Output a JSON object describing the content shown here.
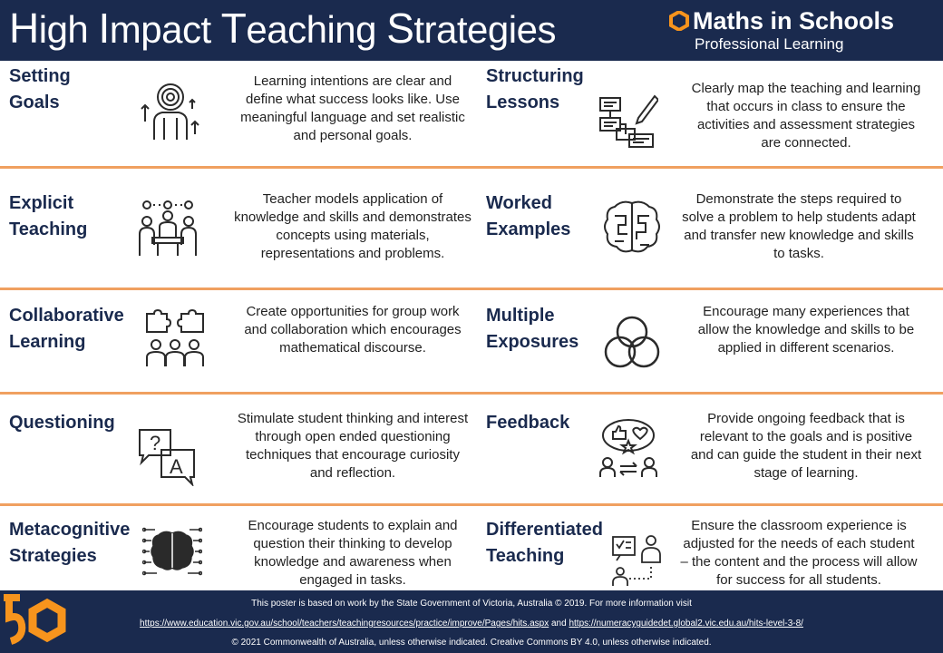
{
  "header": {
    "title_parts": [
      {
        "cap": "H",
        "rest": "igh "
      },
      {
        "cap": "I",
        "rest": "mpact "
      },
      {
        "cap": "T",
        "rest": "eaching "
      },
      {
        "cap": "S",
        "rest": "trategies"
      }
    ],
    "brand_name": "Maths in Schools",
    "brand_sub": "Professional Learning",
    "brand_logo_icon": "hexagon-logo-icon"
  },
  "colors": {
    "navy": "#1a2a4e",
    "orange": "#f0a060",
    "logo_orange": "#f7941d"
  },
  "strategies": [
    {
      "title_1": "Setting",
      "title_2": "Goals",
      "icon": "target-person-icon",
      "desc": "Learning intentions are clear and define what success looks like. Use meaningful language and set realistic and personal goals."
    },
    {
      "title_1": "Structuring",
      "title_2": "Lessons",
      "icon": "lesson-plan-icon",
      "desc": "Clearly map the teaching and learning that occurs in class to ensure the activities and assessment strategies are connected."
    },
    {
      "title_1": "Explicit",
      "title_2": "Teaching",
      "icon": "meeting-table-icon",
      "desc": "Teacher models application of knowledge and skills  and demonstrates concepts using materials, representations and problems."
    },
    {
      "title_1": "Worked",
      "title_2": "Examples",
      "icon": "brain-maze-icon",
      "desc": "Demonstrate the steps required to solve a problem to help students adapt and transfer new knowledge and skills to tasks."
    },
    {
      "title_1": "Collaborative",
      "title_2": "Learning",
      "icon": "puzzle-team-icon",
      "desc": "Create opportunities for group work and collaboration which encourages mathematical discourse."
    },
    {
      "title_1": "Multiple",
      "title_2": "Exposures",
      "icon": "venn-circles-icon",
      "desc": "Encourage many experiences that allow the knowledge and skills to be applied in different scenarios."
    },
    {
      "title_1": "Questioning",
      "title_2": "",
      "icon": "question-answer-icon",
      "desc": "Stimulate student thinking and interest through open ended questioning techniques that encourage curiosity and reflection."
    },
    {
      "title_1": "Feedback",
      "title_2": "",
      "icon": "feedback-people-icon",
      "desc": "Provide ongoing feedback that is relevant to the goals and is positive and can guide the student in their next stage of learning."
    },
    {
      "title_1": "Metacognitive",
      "title_2": "Strategies",
      "icon": "brain-circuit-icon",
      "desc": "Encourage students to explain and question their thinking to develop knowledge and awareness when engaged in tasks."
    },
    {
      "title_1": "Differentiated",
      "title_2": "Teaching",
      "icon": "teacher-students-icon",
      "desc": "Ensure the classroom experience is adjusted for the needs of each student – the content and the process will allow for success for all students."
    }
  ],
  "footer": {
    "line1": "This poster is based on work by the State Government of Victoria, Australia © 2019. For more information visit",
    "link1": "https://www.education.vic.gov.au/school/teachers/teachingresources/practice/improve/Pages/hits.aspx",
    "and": " and ",
    "link2": "https://numeracyguidedet.global2.vic.edu.au/hits-level-3-8/",
    "line3": "© 2021 Commonwealth of Australia, unless otherwise indicated. Creative Commons BY 4.0, unless otherwise indicated.",
    "logo_icon": "fifty-logo-icon"
  }
}
